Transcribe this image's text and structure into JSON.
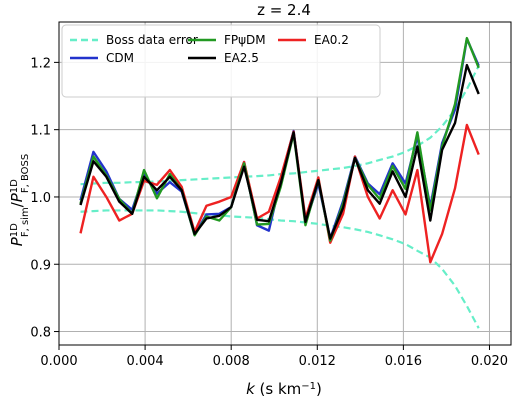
{
  "chart_data": {
    "type": "line",
    "title": "z = 2.4",
    "xlabel": "k (s km⁻¹)",
    "ylabel": "P¹ᴰ_F,sim / P¹ᴰ_F,BOSS",
    "xlim": [
      0.0,
      0.021
    ],
    "ylim": [
      0.78,
      1.26
    ],
    "xticks": [
      0.0,
      0.004,
      0.008,
      0.012,
      0.016,
      0.02
    ],
    "xtick_labels": [
      "0.000",
      "0.004",
      "0.008",
      "0.012",
      "0.016",
      "0.020"
    ],
    "yticks": [
      0.8,
      0.9,
      1.0,
      1.1,
      1.2
    ],
    "ytick_labels": [
      "0.8",
      "0.9",
      "1.0",
      "1.1",
      "1.2"
    ],
    "grid": true,
    "legend_position": "top",
    "x": [
      0.001,
      0.0016,
      0.0022,
      0.0028,
      0.0034,
      0.00395,
      0.00455,
      0.00515,
      0.0057,
      0.0063,
      0.00685,
      0.00745,
      0.008,
      0.0086,
      0.0092,
      0.00975,
      0.0103,
      0.0109,
      0.01145,
      0.01205,
      0.0126,
      0.0132,
      0.01375,
      0.01435,
      0.0149,
      0.0155,
      0.0161,
      0.01665,
      0.01725,
      0.0178,
      0.0184,
      0.01895,
      0.0195
    ],
    "series": [
      {
        "name": "Boss data error",
        "color": "#66eec8",
        "dash": true,
        "upper": [
          1.019,
          1.02,
          1.021,
          1.021,
          1.022,
          1.022,
          1.023,
          1.024,
          1.025,
          1.026,
          1.027,
          1.028,
          1.029,
          1.03,
          1.031,
          1.032,
          1.034,
          1.035,
          1.037,
          1.039,
          1.041,
          1.043,
          1.046,
          1.05,
          1.055,
          1.06,
          1.067,
          1.076,
          1.088,
          1.105,
          1.13,
          1.16,
          1.195
        ],
        "lower": [
          0.978,
          0.979,
          0.98,
          0.98,
          0.98,
          0.98,
          0.98,
          0.979,
          0.978,
          0.976,
          0.974,
          0.973,
          0.971,
          0.97,
          0.969,
          0.967,
          0.965,
          0.964,
          0.962,
          0.96,
          0.957,
          0.955,
          0.952,
          0.948,
          0.943,
          0.937,
          0.93,
          0.92,
          0.91,
          0.893,
          0.868,
          0.838,
          0.805
        ]
      },
      {
        "name": "CDM",
        "color": "#2233cc",
        "values": [
          0.995,
          1.067,
          1.038,
          0.997,
          0.981,
          1.033,
          1.005,
          1.022,
          1.008,
          0.944,
          0.974,
          0.975,
          0.985,
          1.052,
          0.958,
          0.95,
          1.025,
          1.098,
          0.962,
          1.02,
          0.938,
          0.994,
          1.06,
          1.02,
          1.004,
          1.05,
          1.02,
          1.09,
          0.985,
          1.08,
          1.13,
          1.235,
          1.195
        ]
      },
      {
        "name": "EA0.2",
        "color": "#ee2222",
        "values": [
          0.946,
          1.03,
          1.0,
          0.965,
          0.975,
          1.024,
          1.018,
          1.04,
          1.015,
          0.948,
          0.987,
          0.993,
          1.0,
          1.052,
          0.968,
          0.978,
          1.029,
          1.097,
          0.968,
          1.029,
          0.932,
          0.975,
          1.06,
          1.0,
          0.968,
          1.01,
          0.974,
          1.04,
          0.903,
          0.945,
          1.013,
          1.107,
          1.063
        ]
      },
      {
        "name": "FPψDM",
        "color": "#229922",
        "values": [
          0.99,
          1.06,
          1.032,
          0.997,
          0.975,
          1.04,
          0.998,
          1.034,
          1.01,
          0.943,
          0.971,
          0.965,
          0.985,
          1.05,
          0.959,
          0.96,
          1.015,
          1.094,
          0.958,
          1.025,
          0.935,
          0.99,
          1.058,
          1.018,
          0.997,
          1.046,
          1.012,
          1.096,
          0.98,
          1.075,
          1.138,
          1.236,
          1.192
        ]
      },
      {
        "name": "EA2.5",
        "color": "#000000",
        "values": [
          0.988,
          1.053,
          1.03,
          0.993,
          0.975,
          1.03,
          1.01,
          1.03,
          1.01,
          0.945,
          0.968,
          0.972,
          0.985,
          1.045,
          0.966,
          0.964,
          1.02,
          1.096,
          0.963,
          1.025,
          0.938,
          0.984,
          1.058,
          1.01,
          0.99,
          1.038,
          1.0,
          1.075,
          0.965,
          1.07,
          1.11,
          1.196,
          1.153
        ]
      }
    ]
  }
}
